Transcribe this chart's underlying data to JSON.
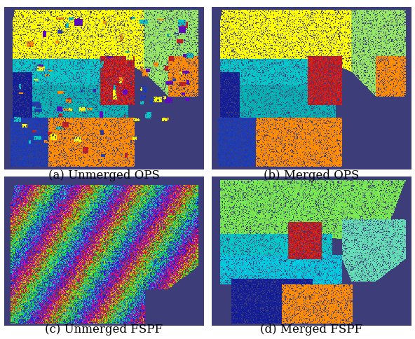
{
  "captions": [
    "(a) Unmerged OPS",
    "(b) Merged OPS",
    "(c) Unmerged FSPF",
    "(d) Merged FSPF"
  ],
  "bg_color_rgb": [
    0.239,
    0.239,
    0.478
  ],
  "caption_fontsize": 12,
  "fig_bg": "#ffffff",
  "figsize": [
    5.92,
    4.84
  ],
  "dpi": 100,
  "panel_bg": [
    61,
    61,
    122
  ],
  "colors": {
    "yellow": [
      255,
      255,
      0
    ],
    "cyan": [
      0,
      200,
      200
    ],
    "cyan2": [
      0,
      180,
      180
    ],
    "blue": [
      30,
      60,
      180
    ],
    "darkblue": [
      20,
      30,
      150
    ],
    "orange": [
      255,
      140,
      0
    ],
    "green": [
      150,
      230,
      100
    ],
    "red": [
      200,
      30,
      30
    ],
    "teal": [
      0,
      160,
      160
    ],
    "lgreen": [
      120,
      230,
      80
    ],
    "purple": [
      120,
      40,
      160
    ]
  }
}
